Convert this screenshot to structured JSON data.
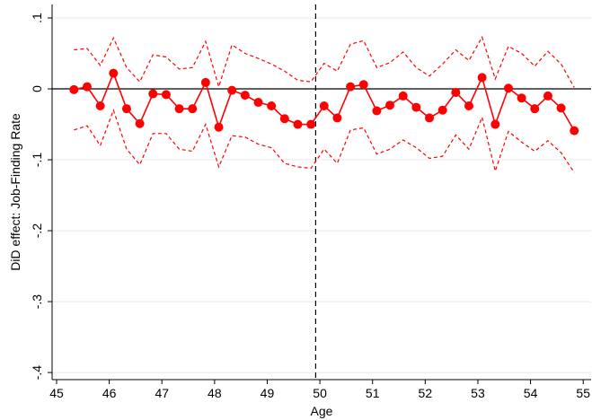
{
  "chart_data": {
    "type": "line",
    "xlabel": "Age",
    "ylabel": "DiD effect: Job-Finding Rate",
    "x": [
      45.33,
      45.58,
      45.83,
      46.08,
      46.33,
      46.58,
      46.83,
      47.08,
      47.33,
      47.58,
      47.83,
      48.08,
      48.33,
      48.58,
      48.83,
      49.08,
      49.33,
      49.58,
      49.83,
      50.08,
      50.33,
      50.58,
      50.83,
      51.08,
      51.33,
      51.58,
      51.83,
      52.08,
      52.33,
      52.58,
      52.83,
      53.08,
      53.33,
      53.58,
      53.83,
      54.08,
      54.33,
      54.58,
      54.83
    ],
    "series": [
      {
        "color": "#ff0000",
        "marker": "circle",
        "dash": false,
        "values": [
          -0.001,
          0.003,
          -0.024,
          0.022,
          -0.028,
          -0.049,
          -0.007,
          -0.008,
          -0.028,
          -0.028,
          0.009,
          -0.054,
          -0.002,
          -0.009,
          -0.019,
          -0.024,
          -0.042,
          -0.05,
          -0.05,
          -0.024,
          -0.041,
          0.003,
          0.006,
          -0.031,
          -0.023,
          -0.01,
          -0.026,
          -0.041,
          -0.03,
          -0.005,
          -0.024,
          0.016,
          -0.05,
          0.001,
          -0.013,
          -0.028,
          -0.01,
          -0.027,
          -0.059
        ]
      },
      {
        "color": "#ff0000",
        "marker": "none",
        "dash": true,
        "values": [
          0.055,
          0.057,
          0.033,
          0.072,
          0.03,
          0.01,
          0.048,
          0.045,
          0.028,
          0.03,
          0.067,
          0.003,
          0.062,
          0.05,
          0.043,
          0.035,
          0.025,
          0.012,
          0.01,
          0.036,
          0.025,
          0.063,
          0.068,
          0.03,
          0.037,
          0.052,
          0.03,
          0.018,
          0.035,
          0.055,
          0.04,
          0.073,
          0.014,
          0.06,
          0.05,
          0.032,
          0.053,
          0.035,
          0.002
        ]
      },
      {
        "color": "#ff0000",
        "marker": "none",
        "dash": true,
        "values": [
          -0.058,
          -0.052,
          -0.08,
          -0.03,
          -0.085,
          -0.107,
          -0.063,
          -0.063,
          -0.085,
          -0.088,
          -0.05,
          -0.11,
          -0.066,
          -0.068,
          -0.078,
          -0.083,
          -0.105,
          -0.11,
          -0.112,
          -0.085,
          -0.105,
          -0.058,
          -0.055,
          -0.092,
          -0.085,
          -0.072,
          -0.083,
          -0.098,
          -0.095,
          -0.065,
          -0.085,
          -0.04,
          -0.116,
          -0.06,
          -0.075,
          -0.088,
          -0.073,
          -0.09,
          -0.118
        ]
      }
    ],
    "xlim": [
      44.915,
      55.15
    ],
    "xticks": [
      45,
      46,
      47,
      48,
      49,
      50,
      51,
      52,
      53,
      54,
      55
    ],
    "ylim": [
      -0.41,
      0.119
    ],
    "yticks": [
      {
        "value": -0.4,
        "label": "-.4"
      },
      {
        "value": -0.3,
        "label": "-.3"
      },
      {
        "value": -0.2,
        "label": "-.2"
      },
      {
        "value": -0.1,
        "label": "-.1"
      },
      0,
      {
        "value": 0.1,
        "label": ".1"
      }
    ],
    "grid": true,
    "hline": 0,
    "vline": 49.92
  }
}
